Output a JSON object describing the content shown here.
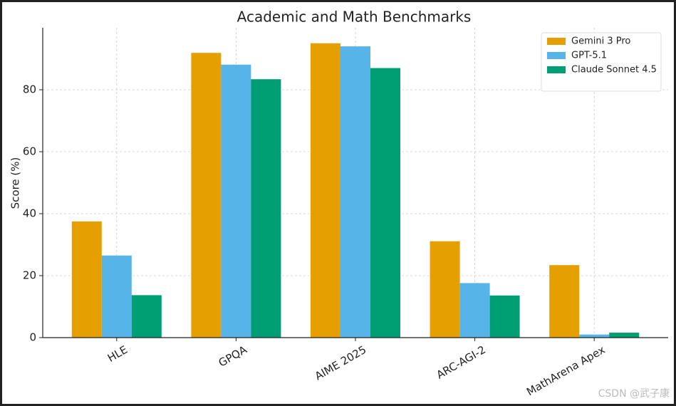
{
  "chart_data": {
    "type": "bar",
    "title": "Academic and Math Benchmarks",
    "ylabel": "Score (%)",
    "categories": [
      "HLE",
      "GPQA",
      "AIME 2025",
      "ARC-AGI-2",
      "MathArena Apex"
    ],
    "series": [
      {
        "name": "Gemini 3 Pro",
        "color": "#e69f00",
        "values": [
          37.5,
          91.9,
          95,
          31.1,
          23.4
        ]
      },
      {
        "name": "GPT-5.1",
        "color": "#56b4e9",
        "values": [
          26.5,
          88.1,
          94,
          17.6,
          1
        ]
      },
      {
        "name": "Claude Sonnet 4.5",
        "color": "#009e73",
        "values": [
          13.7,
          83.4,
          87,
          13.6,
          1.6
        ]
      }
    ],
    "ylim": [
      0,
      100
    ],
    "yticks": [
      0,
      20,
      40,
      60,
      80
    ],
    "grid": true,
    "legend": "upper right"
  },
  "watermark": "CSDN @武子康"
}
